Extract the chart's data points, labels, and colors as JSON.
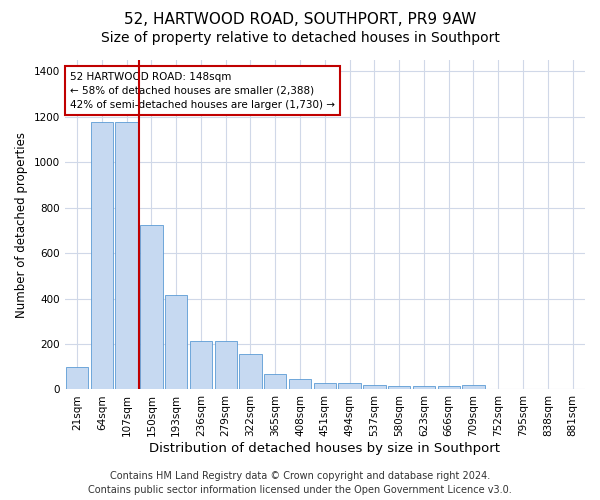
{
  "title1": "52, HARTWOOD ROAD, SOUTHPORT, PR9 9AW",
  "title2": "Size of property relative to detached houses in Southport",
  "xlabel": "Distribution of detached houses by size in Southport",
  "ylabel": "Number of detached properties",
  "categories": [
    "21sqm",
    "64sqm",
    "107sqm",
    "150sqm",
    "193sqm",
    "236sqm",
    "279sqm",
    "322sqm",
    "365sqm",
    "408sqm",
    "451sqm",
    "494sqm",
    "537sqm",
    "580sqm",
    "623sqm",
    "666sqm",
    "709sqm",
    "752sqm",
    "795sqm",
    "838sqm",
    "881sqm"
  ],
  "values": [
    100,
    1175,
    1175,
    725,
    415,
    215,
    215,
    155,
    70,
    48,
    30,
    30,
    18,
    14,
    14,
    14,
    18,
    0,
    0,
    0,
    0
  ],
  "bar_color": "#c6d9f1",
  "bar_edge_color": "#5b9bd5",
  "highlight_index": 3,
  "highlight_line_color": "#c00000",
  "ylim": [
    0,
    1450
  ],
  "yticks": [
    0,
    200,
    400,
    600,
    800,
    1000,
    1200,
    1400
  ],
  "annotation_line1": "52 HARTWOOD ROAD: 148sqm",
  "annotation_line2": "← 58% of detached houses are smaller (2,388)",
  "annotation_line3": "42% of semi-detached houses are larger (1,730) →",
  "annotation_box_color": "#ffffff",
  "annotation_border_color": "#c00000",
  "footer1": "Contains HM Land Registry data © Crown copyright and database right 2024.",
  "footer2": "Contains public sector information licensed under the Open Government Licence v3.0.",
  "bg_color": "#ffffff",
  "grid_color": "#d0d8e8",
  "title1_fontsize": 11,
  "title2_fontsize": 10,
  "xlabel_fontsize": 9.5,
  "ylabel_fontsize": 8.5,
  "tick_fontsize": 7.5,
  "footer_fontsize": 7
}
